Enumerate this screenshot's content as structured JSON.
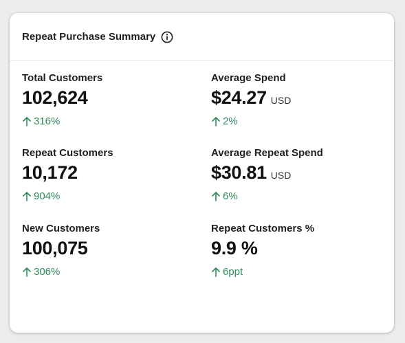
{
  "card": {
    "title": "Repeat Purchase Summary",
    "info_icon": "info-circle-icon"
  },
  "colors": {
    "positive": "#2e8a5a",
    "card_bg": "#ffffff",
    "page_bg": "#ececec"
  },
  "metrics": [
    {
      "label": "Total Customers",
      "value": "102,624",
      "unit": "",
      "change": "316%"
    },
    {
      "label": "Average Spend",
      "value": "$24.27",
      "unit": "USD",
      "change": "2%"
    },
    {
      "label": "Repeat Customers",
      "value": "10,172",
      "unit": "",
      "change": "904%"
    },
    {
      "label": "Average Repeat Spend",
      "value": "$30.81",
      "unit": "USD",
      "change": "6%"
    },
    {
      "label": "New Customers",
      "value": "100,075",
      "unit": "",
      "change": "306%"
    },
    {
      "label": "Repeat Customers %",
      "value": "9.9 %",
      "unit": "",
      "change": "6ppt"
    }
  ],
  "change_icon": "arrow-up-icon"
}
